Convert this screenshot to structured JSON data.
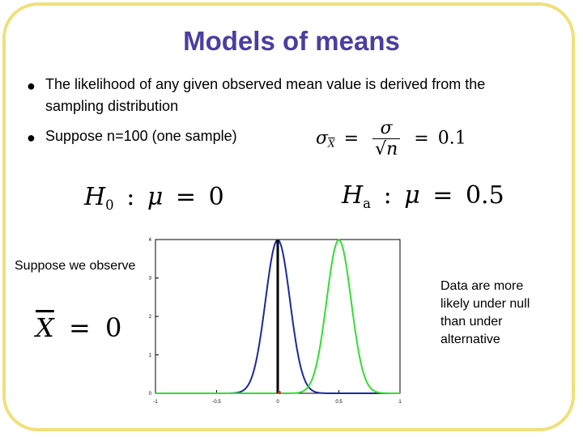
{
  "title": "Models of means",
  "bullets": [
    "The likelihood of any given observed mean value is derived from the sampling distribution",
    "Suppose n=100 (one sample)"
  ],
  "formulas": {
    "se_sigma": "σ",
    "se_sub": "X",
    "se_num": "σ",
    "se_n": "n",
    "se_value": "0.1",
    "h0_label": "H",
    "h0_sub": "0",
    "h0_mu": "μ",
    "h0_value": "0",
    "ha_label": "H",
    "ha_sub": "a",
    "ha_mu": "μ",
    "ha_value": "0.5",
    "xbar_var": "X",
    "xbar_value": "0"
  },
  "observe_text": "Suppose we observe",
  "note_text": "Data are more likely under null than under alternative",
  "chart_data": {
    "type": "line",
    "xlim": [
      -1,
      1
    ],
    "ylim": [
      0,
      4
    ],
    "x_ticks": [
      "-1",
      "-0.5",
      "0",
      "0.5",
      "1"
    ],
    "y_ticks": [
      "0",
      "1",
      "2",
      "3",
      "4"
    ],
    "series": [
      {
        "mean": 0,
        "sd": 0.1,
        "color": "#1a2a9a"
      },
      {
        "mean": 0.5,
        "sd": 0.1,
        "color": "#33dd33"
      }
    ],
    "observed_x": 0,
    "observed_color": "#000000",
    "baseline_color": "#33dd33"
  }
}
